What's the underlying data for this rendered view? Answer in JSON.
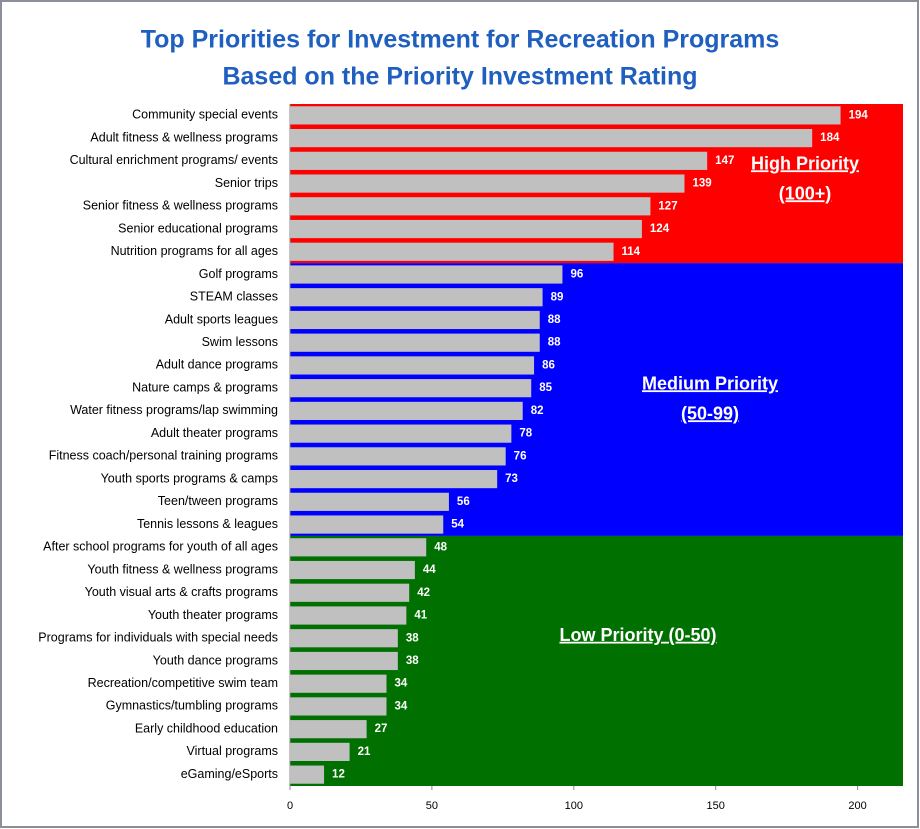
{
  "chart_data": {
    "type": "bar",
    "orientation": "horizontal",
    "title": [
      "Top Priorities for Investment for Recreation Programs",
      "Based on the Priority Investment Rating"
    ],
    "categories": [
      "Community special events",
      "Adult fitness & wellness programs",
      "Cultural enrichment programs/ events",
      "Senior trips",
      "Senior fitness & wellness programs",
      "Senior educational programs",
      "Nutrition programs for all ages",
      "Golf programs",
      "STEAM classes",
      "Adult sports leagues",
      "Swim lessons",
      "Adult dance programs",
      "Nature camps & programs",
      "Water fitness programs/lap swimming",
      "Adult theater programs",
      "Fitness coach/personal training programs",
      "Youth sports programs & camps",
      "Teen/tween programs",
      "Tennis lessons & leagues",
      "After school programs for youth of all ages",
      "Youth fitness & wellness programs",
      "Youth visual arts & crafts programs",
      "Youth theater programs",
      "Programs for individuals with special needs",
      "Youth dance programs",
      "Recreation/competitive swim team",
      "Gymnastics/tumbling programs",
      "Early childhood education",
      "Virtual programs",
      "eGaming/eSports"
    ],
    "values": [
      194,
      184,
      147,
      139,
      127,
      124,
      114,
      96,
      89,
      88,
      88,
      86,
      85,
      82,
      78,
      76,
      73,
      56,
      54,
      48,
      44,
      42,
      41,
      38,
      38,
      34,
      34,
      27,
      21,
      12
    ],
    "color": "#c0c0c0",
    "xlim": [
      0,
      216
    ],
    "xticks": [
      0,
      50,
      100,
      150,
      200
    ],
    "bands": [
      {
        "label": [
          "High Priority",
          "(100+)"
        ],
        "min": 100,
        "color": "#ff0000"
      },
      {
        "label": [
          "Medium Priority",
          "(50-99)"
        ],
        "min": 50,
        "color": "#0000ff"
      },
      {
        "label": [
          "Low Priority (0-50)"
        ],
        "min": 0,
        "color": "#007000"
      }
    ]
  }
}
